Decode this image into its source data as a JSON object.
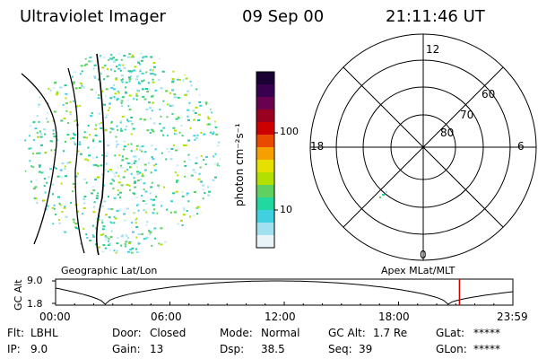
{
  "header": {
    "title": "Ultraviolet Imager",
    "date": "09 Sep 00",
    "time": "21:11:46 UT"
  },
  "colorbar": {
    "unit_label": "photon cm⁻²s⁻¹",
    "ticks": [
      "100",
      "10"
    ],
    "colors": [
      "#1a0033",
      "#3a0050",
      "#6a0050",
      "#9a0020",
      "#cc0000",
      "#e84a00",
      "#f5a000",
      "#e6e000",
      "#b4e000",
      "#60d060",
      "#20d8a0",
      "#40d0e0",
      "#a0e0f0",
      "#e8f4f8"
    ]
  },
  "polar": {
    "labels_mlt": {
      "top": "12",
      "left": "18",
      "right": "6",
      "bottom": "0"
    },
    "labels_lat": [
      "60",
      "70",
      "80"
    ]
  },
  "sections": {
    "left_caption": "Geographic Lat/Lon",
    "right_caption": "Apex MLat/MLT"
  },
  "altitude": {
    "axis_title": "GC Alt",
    "y_ticks": [
      "9.0",
      "1.8"
    ],
    "x_ticks": [
      "00:00",
      "06:00",
      "12:00",
      "18:00",
      "23:59"
    ],
    "marker_color": "#cc0000"
  },
  "status": {
    "flt": {
      "label": "Flt:",
      "value": "LBHL"
    },
    "ip": {
      "label": "IP:",
      "value": "9.0"
    },
    "door": {
      "label": "Door:",
      "value": "Closed"
    },
    "gain": {
      "label": "Gain:",
      "value": "13"
    },
    "mode": {
      "label": "Mode:",
      "value": "Normal"
    },
    "dsp": {
      "label": "Dsp:",
      "value": "38.5"
    },
    "gcalt": {
      "label": "GC Alt:",
      "value": "1.7 Re"
    },
    "seq": {
      "label": "Seq:",
      "value": "39"
    },
    "glat": {
      "label": "GLat:",
      "value": "*****"
    },
    "glon": {
      "label": "GLon:",
      "value": "*****"
    }
  }
}
